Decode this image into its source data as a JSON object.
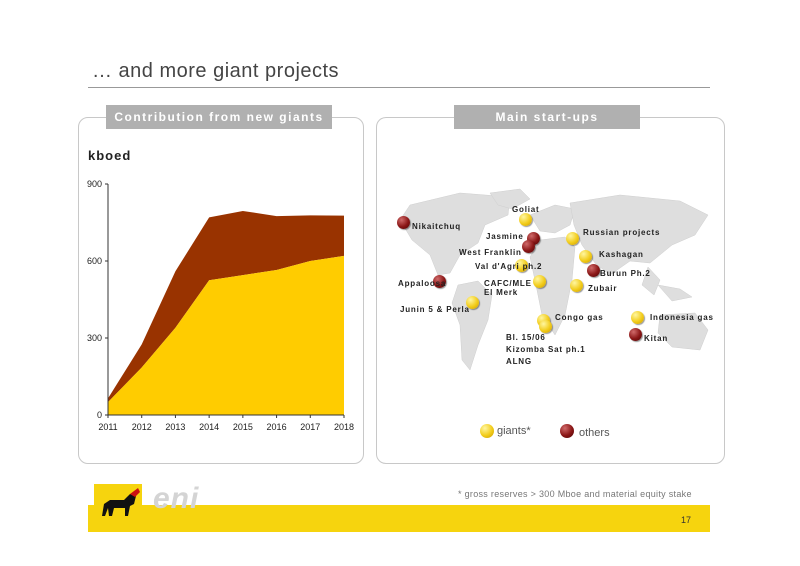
{
  "page": {
    "title": "… and more giant projects",
    "page_number": "17",
    "footnote": "* gross reserves > 300 Mboe and material equity stake",
    "logo_text": "eni"
  },
  "left_panel": {
    "header": "Contribution from new giants",
    "unit_label": "kboed"
  },
  "right_panel": {
    "header": "Main start-ups",
    "legend": {
      "giants": "giants*",
      "others": "others"
    },
    "projects": [
      {
        "label": "Nikaitchuq",
        "kind": "others"
      },
      {
        "label": "Goliat",
        "kind": "giants"
      },
      {
        "label": "Jasmine",
        "kind": "others"
      },
      {
        "label": "West Franklin",
        "kind": "others"
      },
      {
        "label": "Russian projects",
        "kind": "giants"
      },
      {
        "label": "Kashagan",
        "kind": "giants"
      },
      {
        "label": "Val d'Agri ph.2",
        "kind": "giants"
      },
      {
        "label": "Burun Ph.2",
        "kind": "others"
      },
      {
        "label": "Appaloosa",
        "kind": "others"
      },
      {
        "label": "CAFC/MLE",
        "kind": "giants"
      },
      {
        "label": "El Merk",
        "kind": "giants"
      },
      {
        "label": "Zubair",
        "kind": "giants"
      },
      {
        "label": "Junin 5 & Perla",
        "kind": "giants"
      },
      {
        "label": "Congo gas",
        "kind": "giants"
      },
      {
        "label": "Indonesia gas",
        "kind": "giants"
      },
      {
        "label": "Kitan",
        "kind": "others"
      },
      {
        "label": "Bl. 15/06",
        "kind": "giants"
      },
      {
        "label": "Kizomba Sat ph.1",
        "kind": "giants"
      },
      {
        "label": "ALNG",
        "kind": "giants"
      }
    ]
  },
  "colors": {
    "giants_area": "#ffcc00",
    "others_area": "#993300",
    "footer_bar": "#f6d40e",
    "header_gray": "#b0b0b0"
  },
  "chart_data": {
    "type": "area",
    "x": [
      2011,
      2012,
      2013,
      2014,
      2015,
      2016,
      2017,
      2018
    ],
    "series": [
      {
        "values": [
          50,
          185,
          340,
          525,
          545,
          565,
          600,
          620
        ]
      },
      {
        "values": [
          15,
          90,
          220,
          245,
          250,
          210,
          178,
          157
        ]
      }
    ],
    "ylim": [
      0,
      900
    ],
    "yticks": [
      0,
      300,
      600,
      900
    ],
    "stacked": true,
    "grid": false
  }
}
